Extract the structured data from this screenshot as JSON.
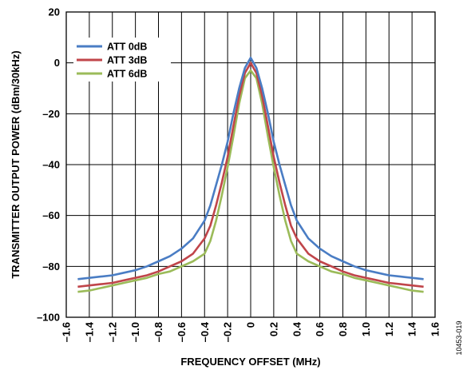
{
  "chart_data": {
    "type": "line",
    "title": "",
    "xlabel": "FREQUENCY OFFSET (MHz)",
    "ylabel": "TRANSMITTER OUTPUT POWER (dBm/30kHz)",
    "xlim": [
      -1.6,
      1.6
    ],
    "ylim": [
      -100,
      20
    ],
    "x_ticks": [
      -1.6,
      -1.4,
      -1.2,
      -1.0,
      -0.8,
      -0.6,
      -0.4,
      -0.2,
      0,
      0.2,
      0.4,
      0.6,
      0.8,
      1.0,
      1.2,
      1.4,
      1.6
    ],
    "x_tick_labels": [
      "–1.6",
      "–1.4",
      "–1.2",
      "–1.0",
      "–0.8",
      "–0.6",
      "–0.4",
      "–0.2",
      "0",
      "0.2",
      "0.4",
      "0.6",
      "0.8",
      "1.0",
      "1.2",
      "1.4",
      "1.6"
    ],
    "y_ticks": [
      -100,
      -80,
      -60,
      -40,
      -20,
      0,
      20
    ],
    "y_tick_labels": [
      "–100",
      "–80",
      "–60",
      "–40",
      "–20",
      "0",
      "20"
    ],
    "grid": true,
    "legend_position": "top-left",
    "figure_id": "10453-019",
    "x": [
      -1.5,
      -1.4,
      -1.3,
      -1.2,
      -1.1,
      -1.0,
      -0.9,
      -0.8,
      -0.7,
      -0.6,
      -0.5,
      -0.4,
      -0.35,
      -0.3,
      -0.25,
      -0.2,
      -0.15,
      -0.1,
      -0.05,
      0,
      0.05,
      0.1,
      0.15,
      0.2,
      0.25,
      0.3,
      0.35,
      0.4,
      0.5,
      0.6,
      0.7,
      0.8,
      0.9,
      1.0,
      1.1,
      1.2,
      1.3,
      1.4,
      1.5
    ],
    "series": [
      {
        "name": "ATT 0dB",
        "color": "#4a7dc4",
        "values": [
          -85,
          -84.5,
          -84,
          -83.5,
          -82.5,
          -81.5,
          -80,
          -78,
          -76,
          -73,
          -69,
          -62,
          -56,
          -48,
          -40,
          -31,
          -20,
          -10,
          -2,
          2,
          -2,
          -10,
          -20,
          -31,
          -40,
          -48,
          -56,
          -62,
          -69,
          -73,
          -76,
          -78,
          -80,
          -81.5,
          -82.5,
          -83.5,
          -84,
          -84.5,
          -85
        ]
      },
      {
        "name": "ATT 3dB",
        "color": "#c0454a",
        "values": [
          -88,
          -87.5,
          -87,
          -86.5,
          -85.5,
          -84.5,
          -83.5,
          -82,
          -80,
          -78,
          -75,
          -69,
          -64,
          -56,
          -47,
          -37,
          -25,
          -13,
          -4,
          0,
          -4,
          -13,
          -25,
          -37,
          -47,
          -56,
          -64,
          -69,
          -75,
          -78,
          -80,
          -82,
          -83.5,
          -84.5,
          -85.5,
          -86.5,
          -87,
          -87.5,
          -88
        ]
      },
      {
        "name": "ATT 6dB",
        "color": "#9bbb59",
        "values": [
          -90,
          -89.5,
          -88.5,
          -87.5,
          -86.5,
          -85.5,
          -84.5,
          -83,
          -82,
          -80,
          -78,
          -75,
          -70,
          -62,
          -52,
          -41,
          -29,
          -16,
          -6,
          -3,
          -6,
          -16,
          -29,
          -41,
          -52,
          -62,
          -70,
          -75,
          -78,
          -80,
          -82,
          -83,
          -84.5,
          -85.5,
          -86.5,
          -87.5,
          -88.5,
          -89.5,
          -90
        ]
      }
    ]
  }
}
